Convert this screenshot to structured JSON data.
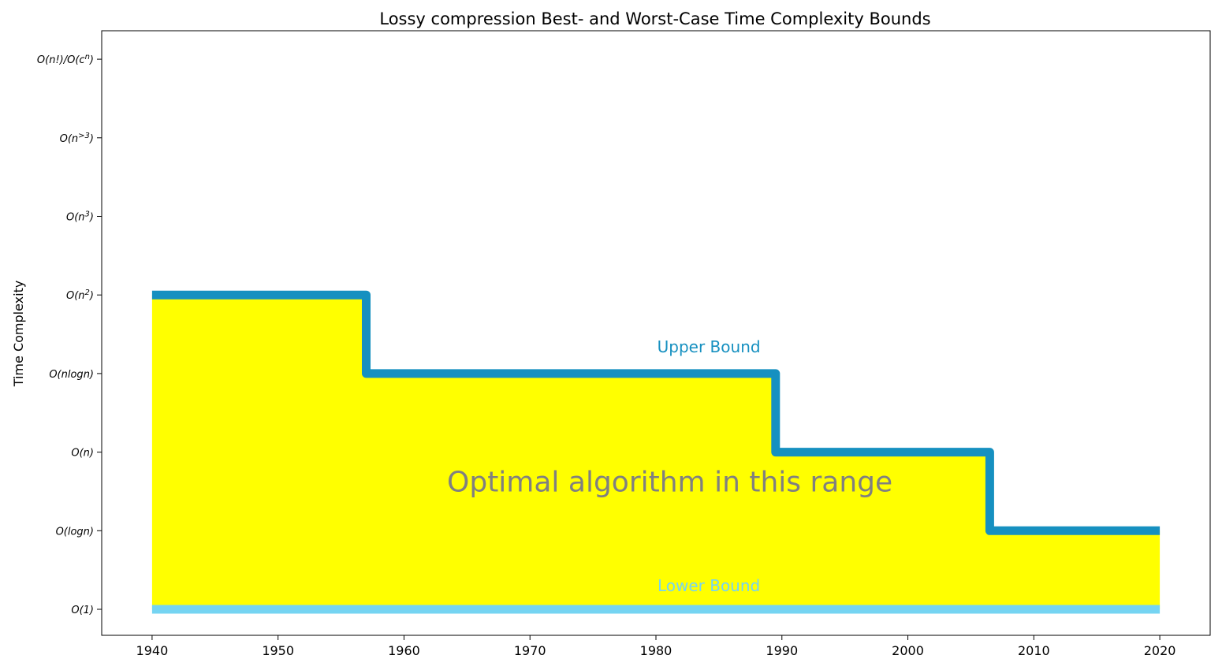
{
  "chart_data": {
    "type": "line",
    "title": "Lossy compression Best- and Worst-Case Time Complexity Bounds",
    "xlabel": "",
    "ylabel": "Time Complexity",
    "xlim": [
      1936,
      2024
    ],
    "x_ticks": [
      "1940",
      "1950",
      "1960",
      "1970",
      "1980",
      "1990",
      "2000",
      "2010",
      "2020"
    ],
    "y_categories": [
      "O(1)",
      "O(logn)",
      "O(n)",
      "O(nlogn)",
      "O(n²)",
      "O(n³)",
      "O(n>3)",
      "O(n!)/O(cⁿ)"
    ],
    "y_tick_labels": [
      {
        "text": "O(1)"
      },
      {
        "text": "O(logn)"
      },
      {
        "text": "O(n)"
      },
      {
        "text": "O(nlogn)"
      },
      {
        "text": "O(n",
        "sup": "2",
        "tail": ")"
      },
      {
        "text": "O(n",
        "sup": "3",
        "tail": ")"
      },
      {
        "text": "O(n",
        "sup": ">3",
        "tail": ")"
      },
      {
        "text": "O(n!)/O(c",
        "sup": "n",
        "tail": ")"
      }
    ],
    "grid": false,
    "series": [
      {
        "name": "Upper Bound",
        "color": "#1690c0",
        "step_points": [
          {
            "x": 1940,
            "y": 4
          },
          {
            "x": 1957,
            "y": 4
          },
          {
            "x": 1957,
            "y": 3
          },
          {
            "x": 1989.5,
            "y": 3
          },
          {
            "x": 1989.5,
            "y": 2
          },
          {
            "x": 2006.5,
            "y": 2
          },
          {
            "x": 2006.5,
            "y": 1
          },
          {
            "x": 2020,
            "y": 1
          }
        ]
      },
      {
        "name": "Lower Bound",
        "color": "#75d4f2",
        "step_points": [
          {
            "x": 1940,
            "y": 0
          },
          {
            "x": 2020,
            "y": 0
          }
        ]
      }
    ],
    "fill_color": "#ffff00",
    "annotations": {
      "upper_label": "Upper Bound",
      "lower_label": "Lower Bound",
      "center_text": "Optimal algorithm in this range",
      "center_color": "#808080"
    }
  }
}
